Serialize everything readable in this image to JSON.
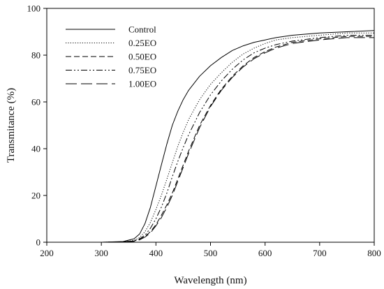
{
  "chart_data": {
    "type": "line",
    "xlabel": "Wavelength (nm)",
    "ylabel": "Transmitance (%)",
    "xlim": [
      200,
      800
    ],
    "ylim": [
      0,
      100
    ],
    "x_ticks": [
      200,
      300,
      400,
      500,
      600,
      700,
      800
    ],
    "y_ticks": [
      0,
      20,
      40,
      60,
      80,
      100
    ],
    "grid": false,
    "legend_position": "top-left",
    "series": [
      {
        "name": "Control",
        "dash": "solid",
        "points": [
          [
            200,
            0
          ],
          [
            300,
            0
          ],
          [
            340,
            0.3
          ],
          [
            360,
            1.5
          ],
          [
            370,
            3.5
          ],
          [
            380,
            8
          ],
          [
            390,
            15
          ],
          [
            400,
            24
          ],
          [
            410,
            33
          ],
          [
            420,
            42
          ],
          [
            430,
            50
          ],
          [
            440,
            56
          ],
          [
            450,
            61
          ],
          [
            460,
            65
          ],
          [
            480,
            71
          ],
          [
            500,
            75.5
          ],
          [
            520,
            79
          ],
          [
            540,
            82
          ],
          [
            560,
            84
          ],
          [
            580,
            85.5
          ],
          [
            600,
            86.5
          ],
          [
            620,
            87.5
          ],
          [
            650,
            88.5
          ],
          [
            700,
            89.5
          ],
          [
            750,
            90
          ],
          [
            800,
            90.5
          ]
        ]
      },
      {
        "name": "0.25EO",
        "dash": "dotted",
        "points": [
          [
            200,
            0
          ],
          [
            300,
            0
          ],
          [
            340,
            0.2
          ],
          [
            360,
            0.8
          ],
          [
            370,
            2
          ],
          [
            380,
            4.5
          ],
          [
            390,
            8.5
          ],
          [
            400,
            14
          ],
          [
            410,
            20
          ],
          [
            420,
            27
          ],
          [
            430,
            34
          ],
          [
            440,
            41
          ],
          [
            450,
            47
          ],
          [
            460,
            52.5
          ],
          [
            480,
            61
          ],
          [
            500,
            67.5
          ],
          [
            520,
            72.5
          ],
          [
            540,
            77
          ],
          [
            560,
            80.5
          ],
          [
            580,
            83
          ],
          [
            600,
            85
          ],
          [
            620,
            86.5
          ],
          [
            650,
            87.5
          ],
          [
            700,
            88.5
          ],
          [
            750,
            89.5
          ],
          [
            800,
            89.5
          ]
        ]
      },
      {
        "name": "0.50EO",
        "dash": "short-dash",
        "points": [
          [
            200,
            0
          ],
          [
            300,
            0
          ],
          [
            340,
            0.1
          ],
          [
            360,
            0.5
          ],
          [
            370,
            1.2
          ],
          [
            380,
            2.5
          ],
          [
            390,
            4.5
          ],
          [
            400,
            7.5
          ],
          [
            410,
            11.5
          ],
          [
            420,
            16
          ],
          [
            430,
            21
          ],
          [
            440,
            27
          ],
          [
            450,
            33
          ],
          [
            460,
            39
          ],
          [
            480,
            50
          ],
          [
            500,
            58.5
          ],
          [
            520,
            65.5
          ],
          [
            540,
            71
          ],
          [
            560,
            75.5
          ],
          [
            580,
            79
          ],
          [
            600,
            81.5
          ],
          [
            620,
            83.5
          ],
          [
            650,
            85.5
          ],
          [
            700,
            87
          ],
          [
            750,
            88
          ],
          [
            800,
            88
          ]
        ]
      },
      {
        "name": "0.75EO",
        "dash": "dash-dot-dot",
        "points": [
          [
            200,
            0
          ],
          [
            300,
            0
          ],
          [
            340,
            0.1
          ],
          [
            360,
            0.6
          ],
          [
            370,
            1.5
          ],
          [
            380,
            3
          ],
          [
            390,
            6
          ],
          [
            400,
            10
          ],
          [
            410,
            15
          ],
          [
            420,
            21
          ],
          [
            430,
            28
          ],
          [
            440,
            34.5
          ],
          [
            450,
            40.5
          ],
          [
            460,
            46
          ],
          [
            480,
            55.5
          ],
          [
            500,
            63
          ],
          [
            520,
            69
          ],
          [
            540,
            74
          ],
          [
            560,
            78
          ],
          [
            580,
            81
          ],
          [
            600,
            83
          ],
          [
            620,
            84.5
          ],
          [
            650,
            86
          ],
          [
            700,
            87.5
          ],
          [
            750,
            88.5
          ],
          [
            800,
            88.5
          ]
        ]
      },
      {
        "name": "1.00EO",
        "dash": "long-dash",
        "points": [
          [
            200,
            0
          ],
          [
            300,
            0
          ],
          [
            340,
            0.1
          ],
          [
            360,
            0.4
          ],
          [
            370,
            1
          ],
          [
            380,
            2.2
          ],
          [
            390,
            4
          ],
          [
            400,
            7
          ],
          [
            410,
            10.5
          ],
          [
            420,
            15
          ],
          [
            430,
            20
          ],
          [
            440,
            26
          ],
          [
            450,
            32
          ],
          [
            460,
            38
          ],
          [
            480,
            49
          ],
          [
            500,
            58
          ],
          [
            520,
            65
          ],
          [
            540,
            70.5
          ],
          [
            560,
            75
          ],
          [
            580,
            78.5
          ],
          [
            600,
            81
          ],
          [
            620,
            83
          ],
          [
            650,
            85
          ],
          [
            700,
            86.5
          ],
          [
            750,
            87.5
          ],
          [
            800,
            87.5
          ]
        ]
      }
    ]
  }
}
